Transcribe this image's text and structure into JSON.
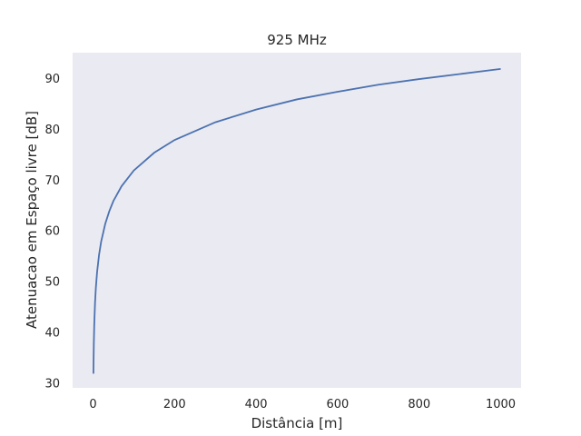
{
  "chart_data": {
    "type": "line",
    "title": "925 MHz",
    "xlabel": "Distância [m]",
    "ylabel": "Atenuacao em Espaço livre [dB]",
    "xlim": [
      -50,
      1050
    ],
    "ylim": [
      29,
      95
    ],
    "xticks": [
      0,
      200,
      400,
      600,
      800,
      1000
    ],
    "yticks": [
      30,
      40,
      50,
      60,
      70,
      80,
      90
    ],
    "grid": false,
    "colors": {
      "background": "#eaeaf2",
      "line": "#4c72b0"
    },
    "series": [
      {
        "x": [
          1,
          2,
          3,
          5,
          7,
          10,
          15,
          20,
          30,
          40,
          50,
          70,
          100,
          150,
          200,
          300,
          400,
          500,
          600,
          700,
          800,
          900,
          1000
        ],
        "values": [
          31.8,
          37.8,
          41.3,
          45.8,
          48.7,
          51.8,
          55.3,
          57.8,
          61.3,
          63.8,
          65.8,
          68.7,
          71.8,
          75.3,
          77.8,
          81.3,
          83.8,
          85.8,
          87.3,
          88.7,
          89.8,
          90.8,
          91.8
        ]
      }
    ]
  }
}
